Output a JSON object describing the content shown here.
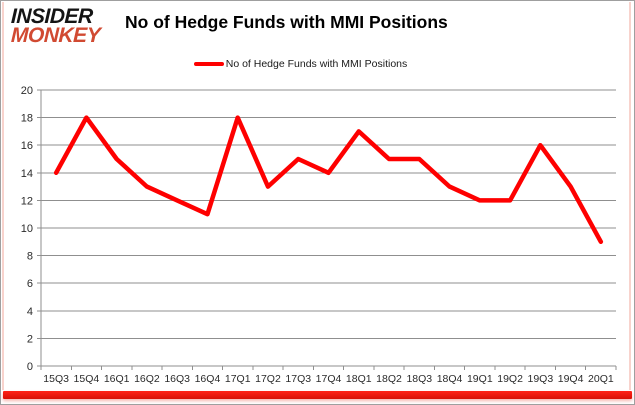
{
  "brand": {
    "line1": "INSIDER",
    "line2": "MONKEY"
  },
  "header": {
    "title": "No of Hedge Funds with MMI Positions"
  },
  "legend": {
    "label": "No of Hedge Funds with MMI Positions"
  },
  "chart_data": {
    "type": "line",
    "title": "No of Hedge Funds with MMI Positions",
    "categories": [
      "15Q3",
      "15Q4",
      "16Q1",
      "16Q2",
      "16Q3",
      "16Q4",
      "17Q1",
      "17Q2",
      "17Q3",
      "17Q4",
      "18Q1",
      "18Q2",
      "18Q3",
      "18Q4",
      "19Q1",
      "19Q2",
      "19Q3",
      "19Q4",
      "20Q1"
    ],
    "series": [
      {
        "name": "No of Hedge Funds with MMI Positions",
        "values": [
          14,
          18,
          15,
          13,
          12,
          11,
          18,
          13,
          15,
          14,
          17,
          15,
          15,
          13,
          12,
          12,
          16,
          13,
          9
        ],
        "color": "#fe0000"
      }
    ],
    "xlabel": "",
    "ylabel": "",
    "ylim": [
      0,
      20
    ],
    "yticks": [
      0,
      2,
      4,
      6,
      8,
      10,
      12,
      14,
      16,
      18,
      20
    ],
    "grid": true,
    "legend_position": "top-center",
    "colors": {
      "line": "#fe0000",
      "gridline": "#8f8f8f",
      "axis": "#8f8f8f",
      "tick_label": "#2b2b2b"
    }
  },
  "frame": {
    "border_color": "#9f9f9f",
    "side_accent_color": "#f8d3cd",
    "bottom_bar_color": "#e31409",
    "background": "#ffffff"
  }
}
